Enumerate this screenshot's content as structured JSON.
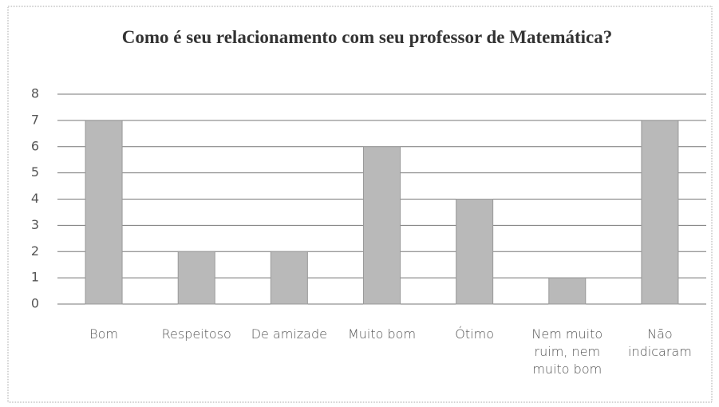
{
  "chart_data": {
    "type": "bar",
    "title": "Como é seu relacionamento com seu professor de Matemática?",
    "categories": [
      "Bom",
      "Respeitoso",
      "De amizade",
      "Muito bom",
      "Ótimo",
      "Nem muito ruim, nem muito bom",
      "Não indicaram"
    ],
    "values": [
      7,
      2,
      2,
      6,
      4,
      1,
      7
    ],
    "color": "#b9b9b9",
    "ylim": [
      0,
      8
    ],
    "yticks": [
      0,
      1,
      2,
      3,
      4,
      5,
      6,
      7,
      8
    ],
    "grid": true
  }
}
